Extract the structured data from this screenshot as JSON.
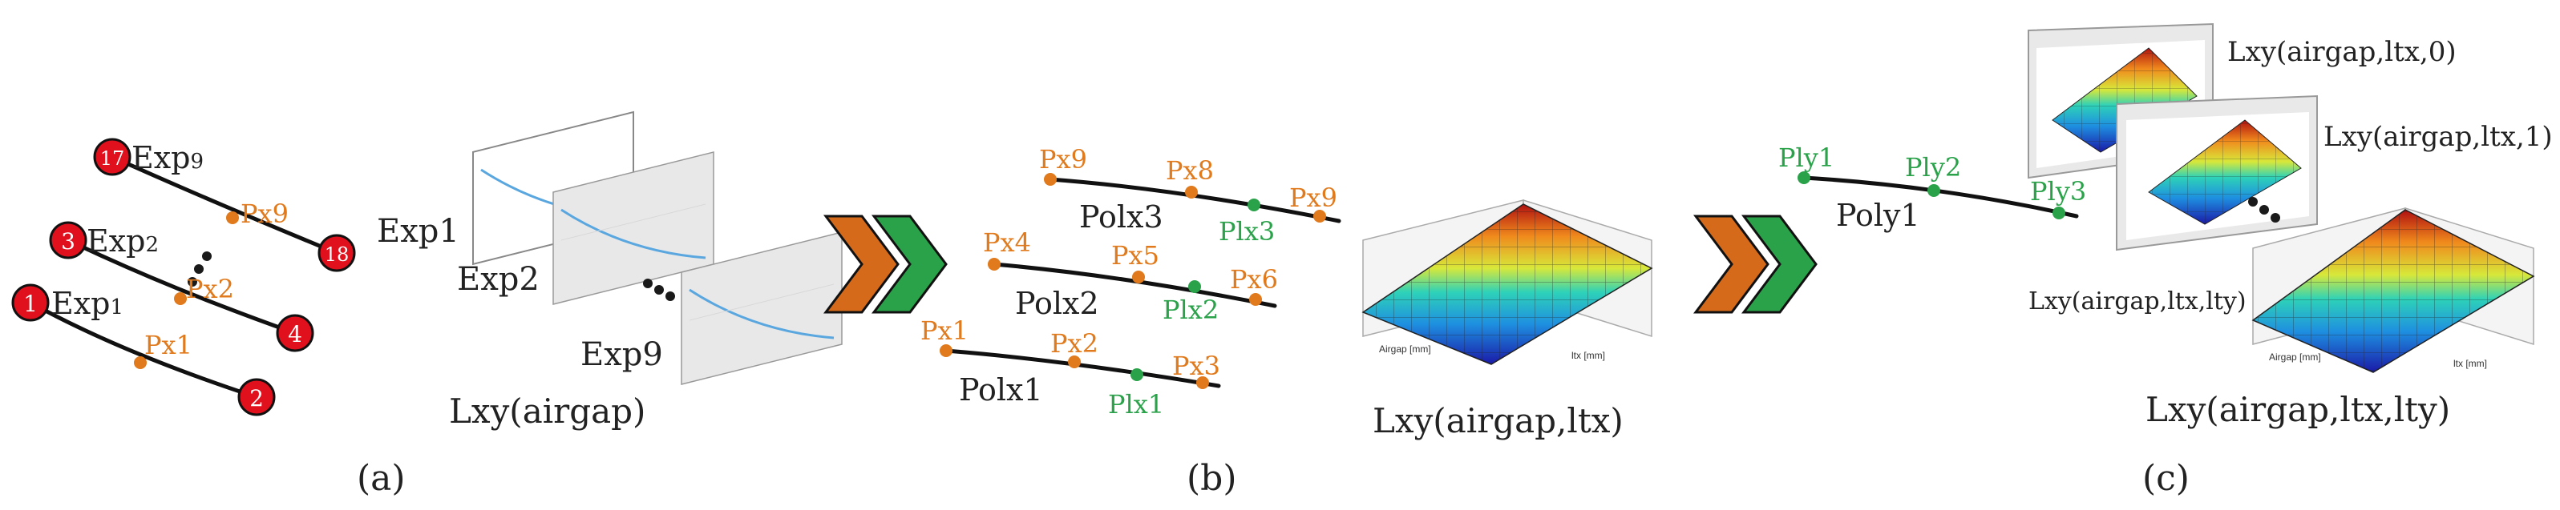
{
  "panel_a": {
    "caption": "(a)",
    "exp_labels": {
      "exp1": "Exp",
      "exp1_sub": "1",
      "exp2": "Exp",
      "exp2_sub": "2",
      "exp9": "Exp",
      "exp9_sub": "9"
    },
    "markers": {
      "m1": "1",
      "m2": "2",
      "m3": "3",
      "m4": "4",
      "m17": "17",
      "m18": "18"
    },
    "points": {
      "px1": "Px1",
      "px2": "Px2",
      "px9": "Px9"
    },
    "stack_labels": {
      "exp1": "Exp1",
      "exp2": "Exp2",
      "exp9": "Exp9"
    },
    "stack_caption": "Lxy(airgap)"
  },
  "panel_b": {
    "caption": "(b)",
    "pol_labels": {
      "polx1": "Polx1",
      "polx2": "Polx2",
      "polx3": "Polx3"
    },
    "points": {
      "px1": "Px1",
      "px2": "Px2",
      "px3": "Px3",
      "px4": "Px4",
      "px5": "Px5",
      "px6": "Px6",
      "px7": "Px9",
      "px8": "Px8",
      "px9": "Px9",
      "plx1": "Plx1",
      "plx2": "Plx2",
      "plx3": "Plx3"
    },
    "surface_caption": "Lxy(airgap,ltx)",
    "surface_xlabel": "Airgap [mm]",
    "surface_ylabel": "ltx [mm]"
  },
  "panel_c": {
    "caption": "(c)",
    "points": {
      "ply1": "Ply1",
      "ply2": "Ply2",
      "ply3": "Ply3"
    },
    "poly_label": "Poly1",
    "stack_labels": {
      "l0": "Lxy(airgap,ltx,0)",
      "l1": "Lxy(airgap,ltx,1)",
      "lty": "Lxy(airgap,ltx,lty)"
    },
    "surface_caption": "Lxy(airgap,ltx,lty)",
    "surface_xlabel": "Airgap [mm]",
    "surface_ylabel": "ltx [mm]"
  },
  "colors": {
    "orange": "#e07a1c",
    "green": "#2aa24a",
    "red": "#e0101c",
    "curve": "#111111"
  }
}
